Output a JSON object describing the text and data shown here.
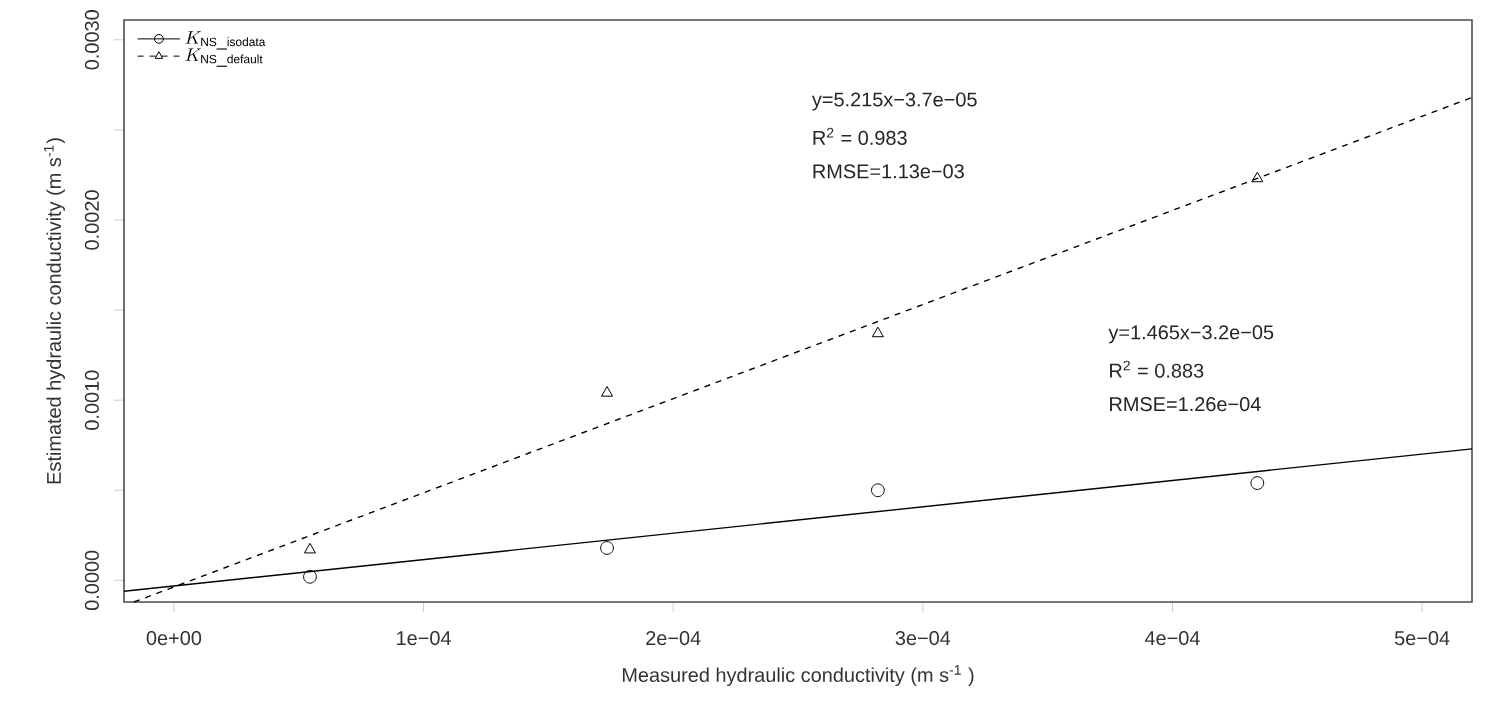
{
  "chart_data": {
    "type": "scatter",
    "xlabel": "Measured hydraulic conductivity (m s$^{-1}$ )",
    "ylabel": "Estimated hydraulic conductivity (m  s$^{-1}$)",
    "x": [
      5.45e-05,
      0.0001735,
      0.000282,
      0.000434
    ],
    "series": [
      {
        "name": "K_{\\mathrm{NS\\_isodata}}",
        "color": "#000000",
        "marker": "circle",
        "line_style": "solid",
        "values": [
          2e-05,
          0.00018,
          0.0005,
          0.00054
        ]
      },
      {
        "name": "K_{\\mathrm{NS\\_default}}",
        "color": "#000000",
        "marker": "triangle",
        "line_style": "dashed",
        "values": [
          0.00017,
          0.00104,
          0.00137,
          0.00223
        ]
      },
      {
        "type": "line",
        "color": "#000000",
        "line_style": "solid",
        "x": [
          -2e-05,
          0.00052
        ],
        "values": [
          -6e-05,
          0.00073
        ]
      },
      {
        "type": "line",
        "color": "#000000",
        "line_style": "dashed",
        "x": [
          -1.6e-05,
          0.00052
        ],
        "values": [
          -0.00012,
          0.00268
        ]
      }
    ],
    "xlim": [
      -2e-05,
      0.00052
    ],
    "ylim": [
      -0.00012,
      0.00311
    ],
    "xticks": [
      {
        "value": 0,
        "label": "0e+00"
      },
      {
        "value": 0.0001,
        "label": "1e−04"
      },
      {
        "value": 0.0002,
        "label": "2e−04"
      },
      {
        "value": 0.0003,
        "label": "3e−04"
      },
      {
        "value": 0.0004,
        "label": "4e−04"
      },
      {
        "value": 0.0005,
        "label": "5e−04"
      }
    ],
    "yticks": [
      {
        "value": 0,
        "label": "0.0000"
      },
      {
        "value": 0.0005,
        "label": null
      },
      {
        "value": 0.001,
        "label": "0.0010"
      },
      {
        "value": 0.0015,
        "label": null
      },
      {
        "value": 0.002,
        "label": "0.0020"
      },
      {
        "value": 0.0025,
        "label": null
      },
      {
        "value": 0.003,
        "label": "0.0030"
      }
    ],
    "annotations": [
      "y=5.215x−3.7e−05",
      "R$^{2}$ = 0.983",
      "RMSE=1.13e−03",
      "y=1.465x−3.2e−05",
      "R$^{2}$ = 0.883",
      "RMSE=1.26e−04"
    ],
    "legend": "top left"
  }
}
